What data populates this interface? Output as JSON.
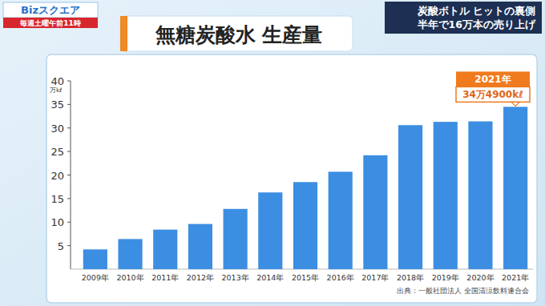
{
  "header": {
    "program": "Bizスクエア",
    "schedule": "毎週土曜午前11時",
    "headline": [
      "炭酸ボトル ヒットの裏側",
      "半年で16万本の売り上げ"
    ]
  },
  "chart_data": {
    "type": "bar",
    "title": "無糖炭酸水 生産量",
    "y_label": "万kℓ",
    "categories": [
      "2009年",
      "2010年",
      "2011年",
      "2012年",
      "2013年",
      "2014年",
      "2015年",
      "2016年",
      "2017年",
      "2018年",
      "2019年",
      "2020年",
      "2021年"
    ],
    "values": [
      4.2,
      6.4,
      8.4,
      9.6,
      12.8,
      16.3,
      18.5,
      20.7,
      24.2,
      30.6,
      31.3,
      31.4,
      34.49
    ],
    "color": "#3b8ee2",
    "ylim": [
      0,
      40
    ],
    "yticks": [
      5,
      10,
      15,
      20,
      25,
      30,
      35,
      40
    ],
    "grid": false,
    "annotations": [
      {
        "category": "2021年",
        "title": "2021年",
        "text": "34万4900kℓ"
      }
    ],
    "source": "出典：一般社団法人 全国清涼飲料連合会"
  }
}
